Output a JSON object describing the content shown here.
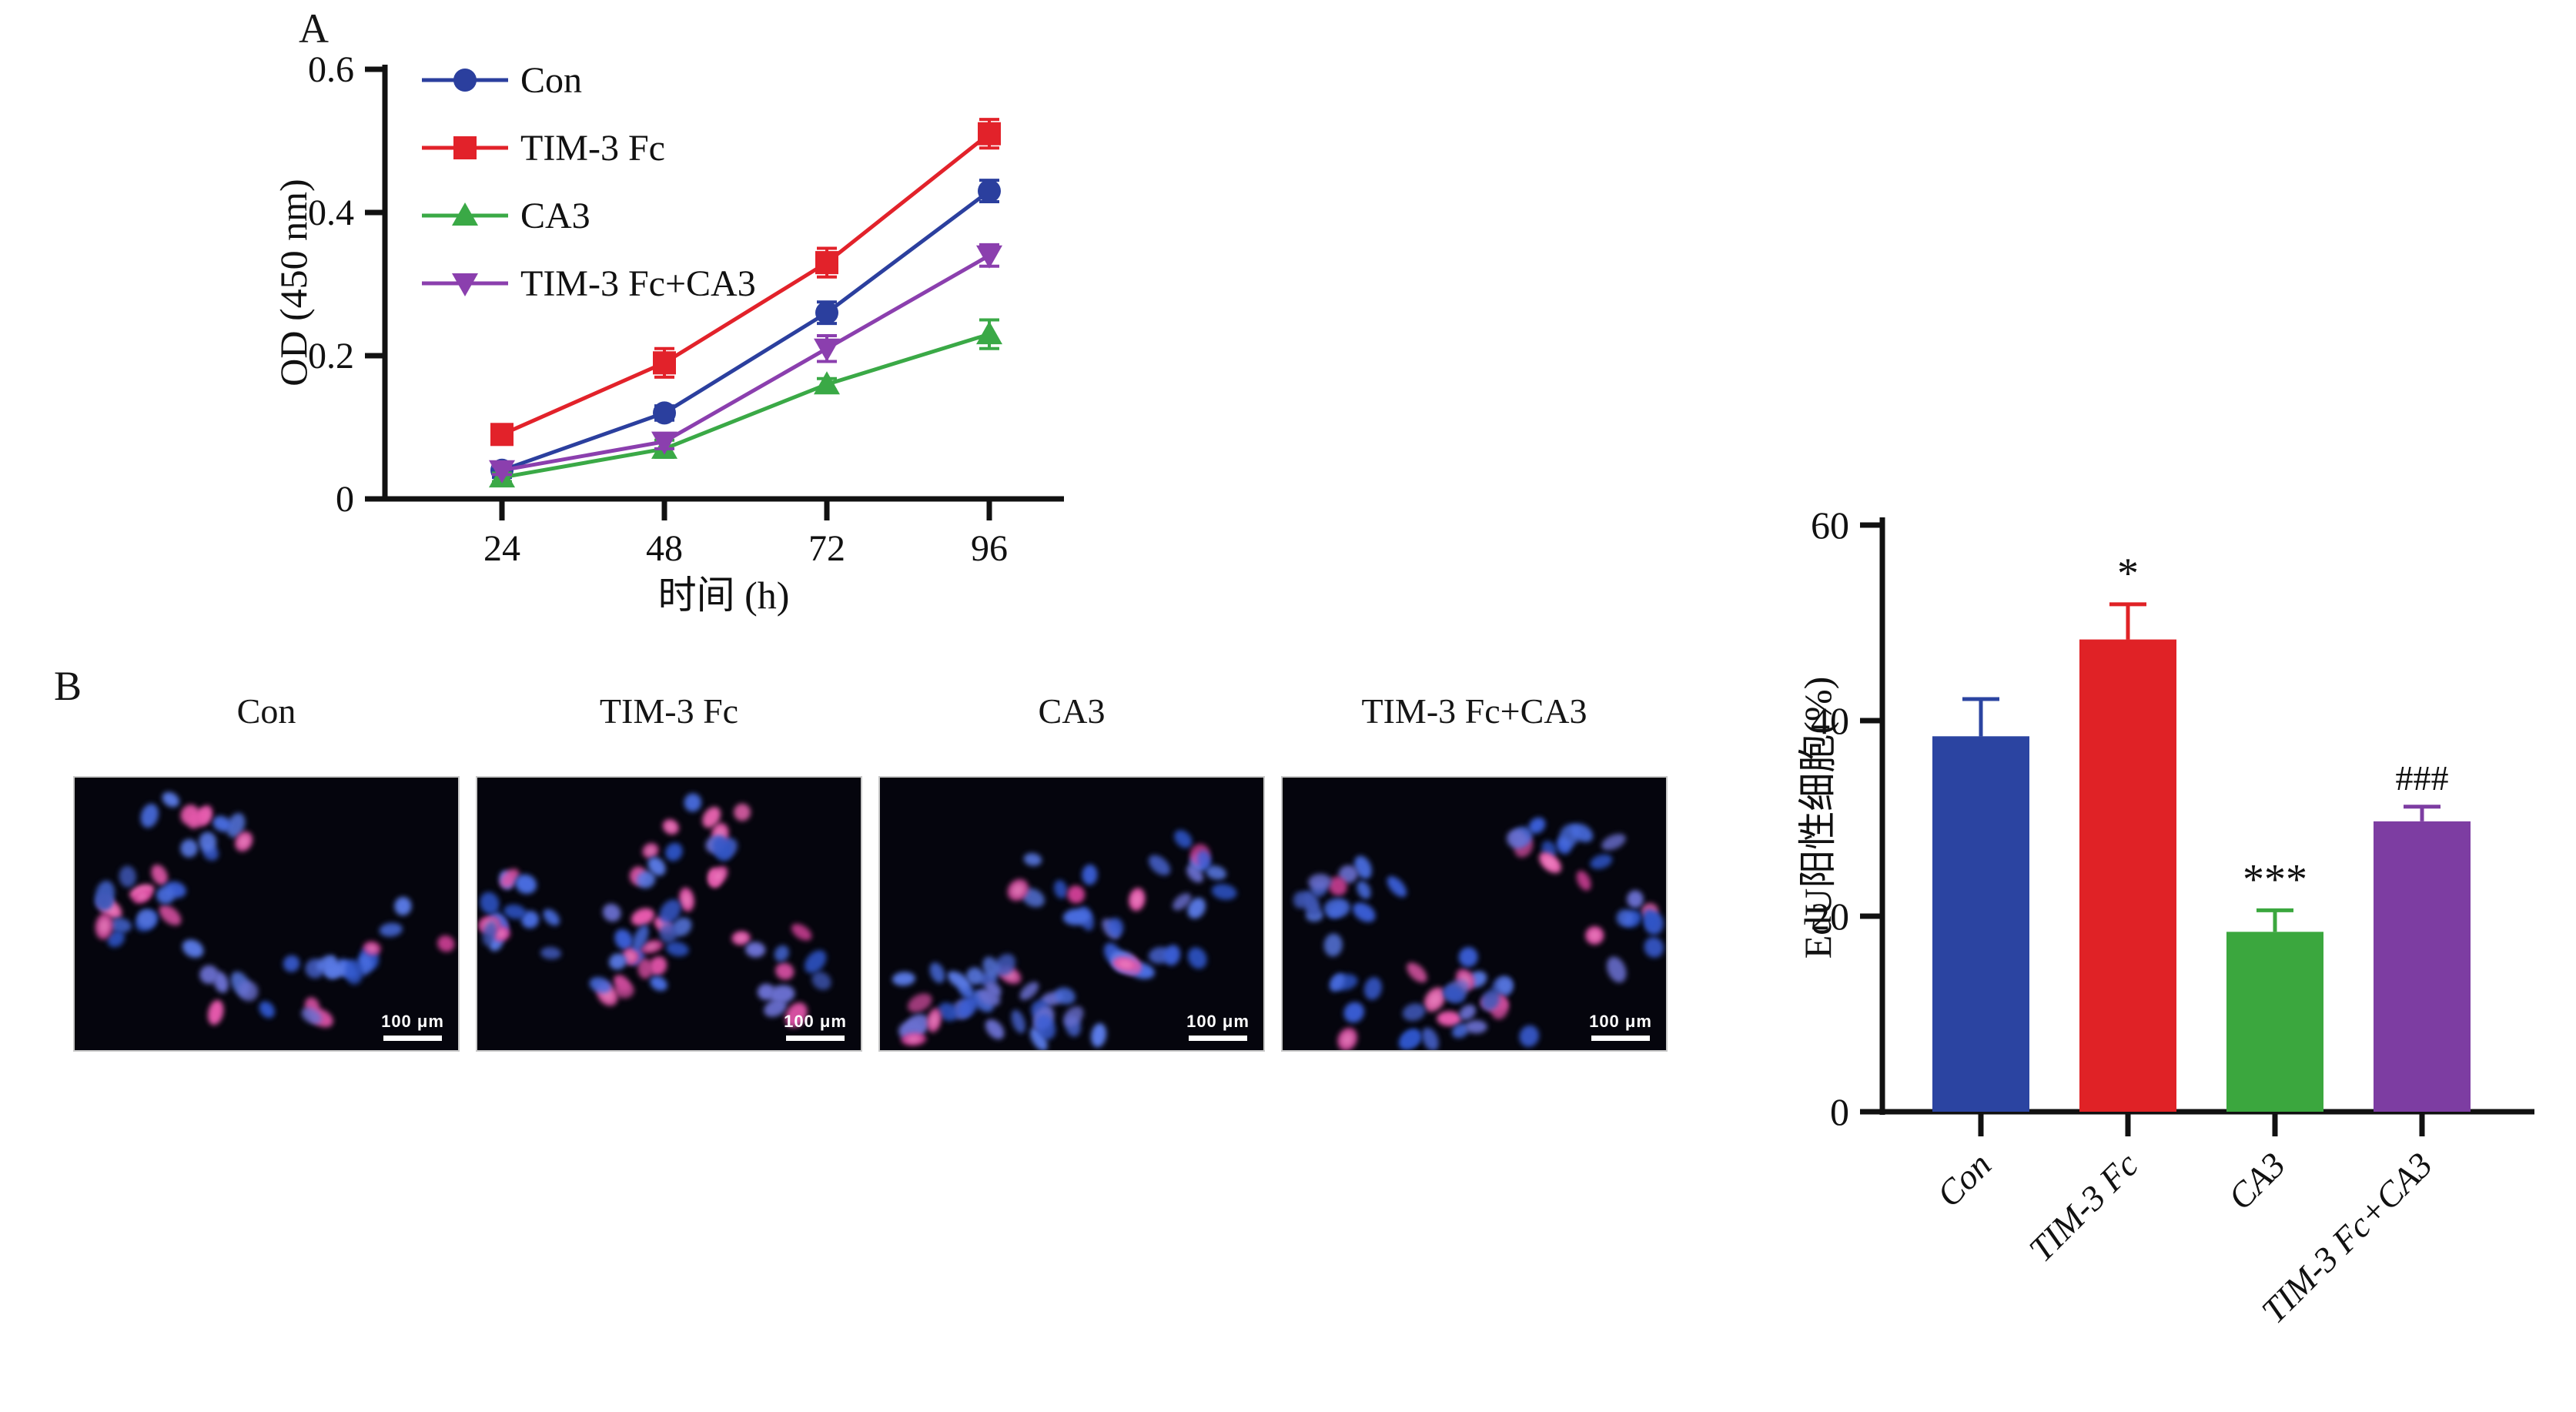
{
  "figure": {
    "panel_a_label": "A",
    "panel_b_label": "B",
    "background": "#ffffff"
  },
  "chart_data": [
    {
      "id": "cck8-proliferation-line",
      "type": "line",
      "title": "",
      "xlabel": "时间 (h)",
      "ylabel": "OD (450 nm)",
      "x": [
        24,
        48,
        72,
        96
      ],
      "ylim": [
        0,
        0.6
      ],
      "yticks": [
        0,
        0.2,
        0.4,
        0.6
      ],
      "ytick_labels": [
        "0",
        "0.2",
        "0.4",
        "0.6"
      ],
      "grid": false,
      "legend_position": "inside-top-left",
      "axis_color": "#111111",
      "series": [
        {
          "name": "Con",
          "marker": "circle",
          "color": "#2b3f9e",
          "values": [
            0.04,
            0.12,
            0.26,
            0.43
          ],
          "errors": [
            0.01,
            0.01,
            0.015,
            0.015
          ]
        },
        {
          "name": "TIM-3 Fc",
          "marker": "square",
          "color": "#e2222a",
          "values": [
            0.09,
            0.19,
            0.33,
            0.51
          ],
          "errors": [
            0.012,
            0.02,
            0.02,
            0.02
          ]
        },
        {
          "name": "CA3",
          "marker": "triangle-up",
          "color": "#3aa946",
          "values": [
            0.03,
            0.07,
            0.16,
            0.23
          ],
          "errors": [
            0.006,
            0.012,
            0.008,
            0.02
          ]
        },
        {
          "name": "TIM-3 Fc+CA3",
          "marker": "triangle-down",
          "color": "#8b3fae",
          "values": [
            0.04,
            0.08,
            0.21,
            0.34
          ],
          "errors": [
            0.006,
            0.01,
            0.018,
            0.015
          ]
        }
      ]
    },
    {
      "id": "edu-positive-bar",
      "type": "bar",
      "title": "",
      "xlabel": "",
      "ylabel": "EdU阳性细胞(%)",
      "categories": [
        "Con",
        "TIM-3 Fc",
        "CA3",
        "TIM-3 Fc+CA3"
      ],
      "values": [
        38.4,
        48.3,
        18.4,
        29.7
      ],
      "errors": [
        3.8,
        3.6,
        2.2,
        1.5
      ],
      "annotations": [
        "",
        "*",
        "***",
        "###"
      ],
      "colors": [
        "#2b44a1",
        "#e02226",
        "#3ba73e",
        "#7d3da2"
      ],
      "ylim": [
        0,
        60
      ],
      "yticks": [
        0,
        20,
        40,
        60
      ],
      "grid": false,
      "axis_color": "#111111",
      "tick_label_style": "italic-rotated-45"
    }
  ],
  "panel_b": {
    "images": [
      {
        "label": "Con",
        "scale_bar_text": "100 μm",
        "blue_cells": 34,
        "pink_cells": 15
      },
      {
        "label": "TIM-3 Fc",
        "scale_bar_text": "100 μm",
        "blue_cells": 36,
        "pink_cells": 26
      },
      {
        "label": "CA3",
        "scale_bar_text": "100 μm",
        "blue_cells": 52,
        "pink_cells": 10
      },
      {
        "label": "TIM-3 Fc+CA3",
        "scale_bar_text": "100 μm",
        "blue_cells": 48,
        "pink_cells": 13
      }
    ],
    "cell_colors": {
      "nucleus_blue": "#3f63d6",
      "edu_pink": "#de4da4",
      "image_background": "#05050d"
    }
  }
}
